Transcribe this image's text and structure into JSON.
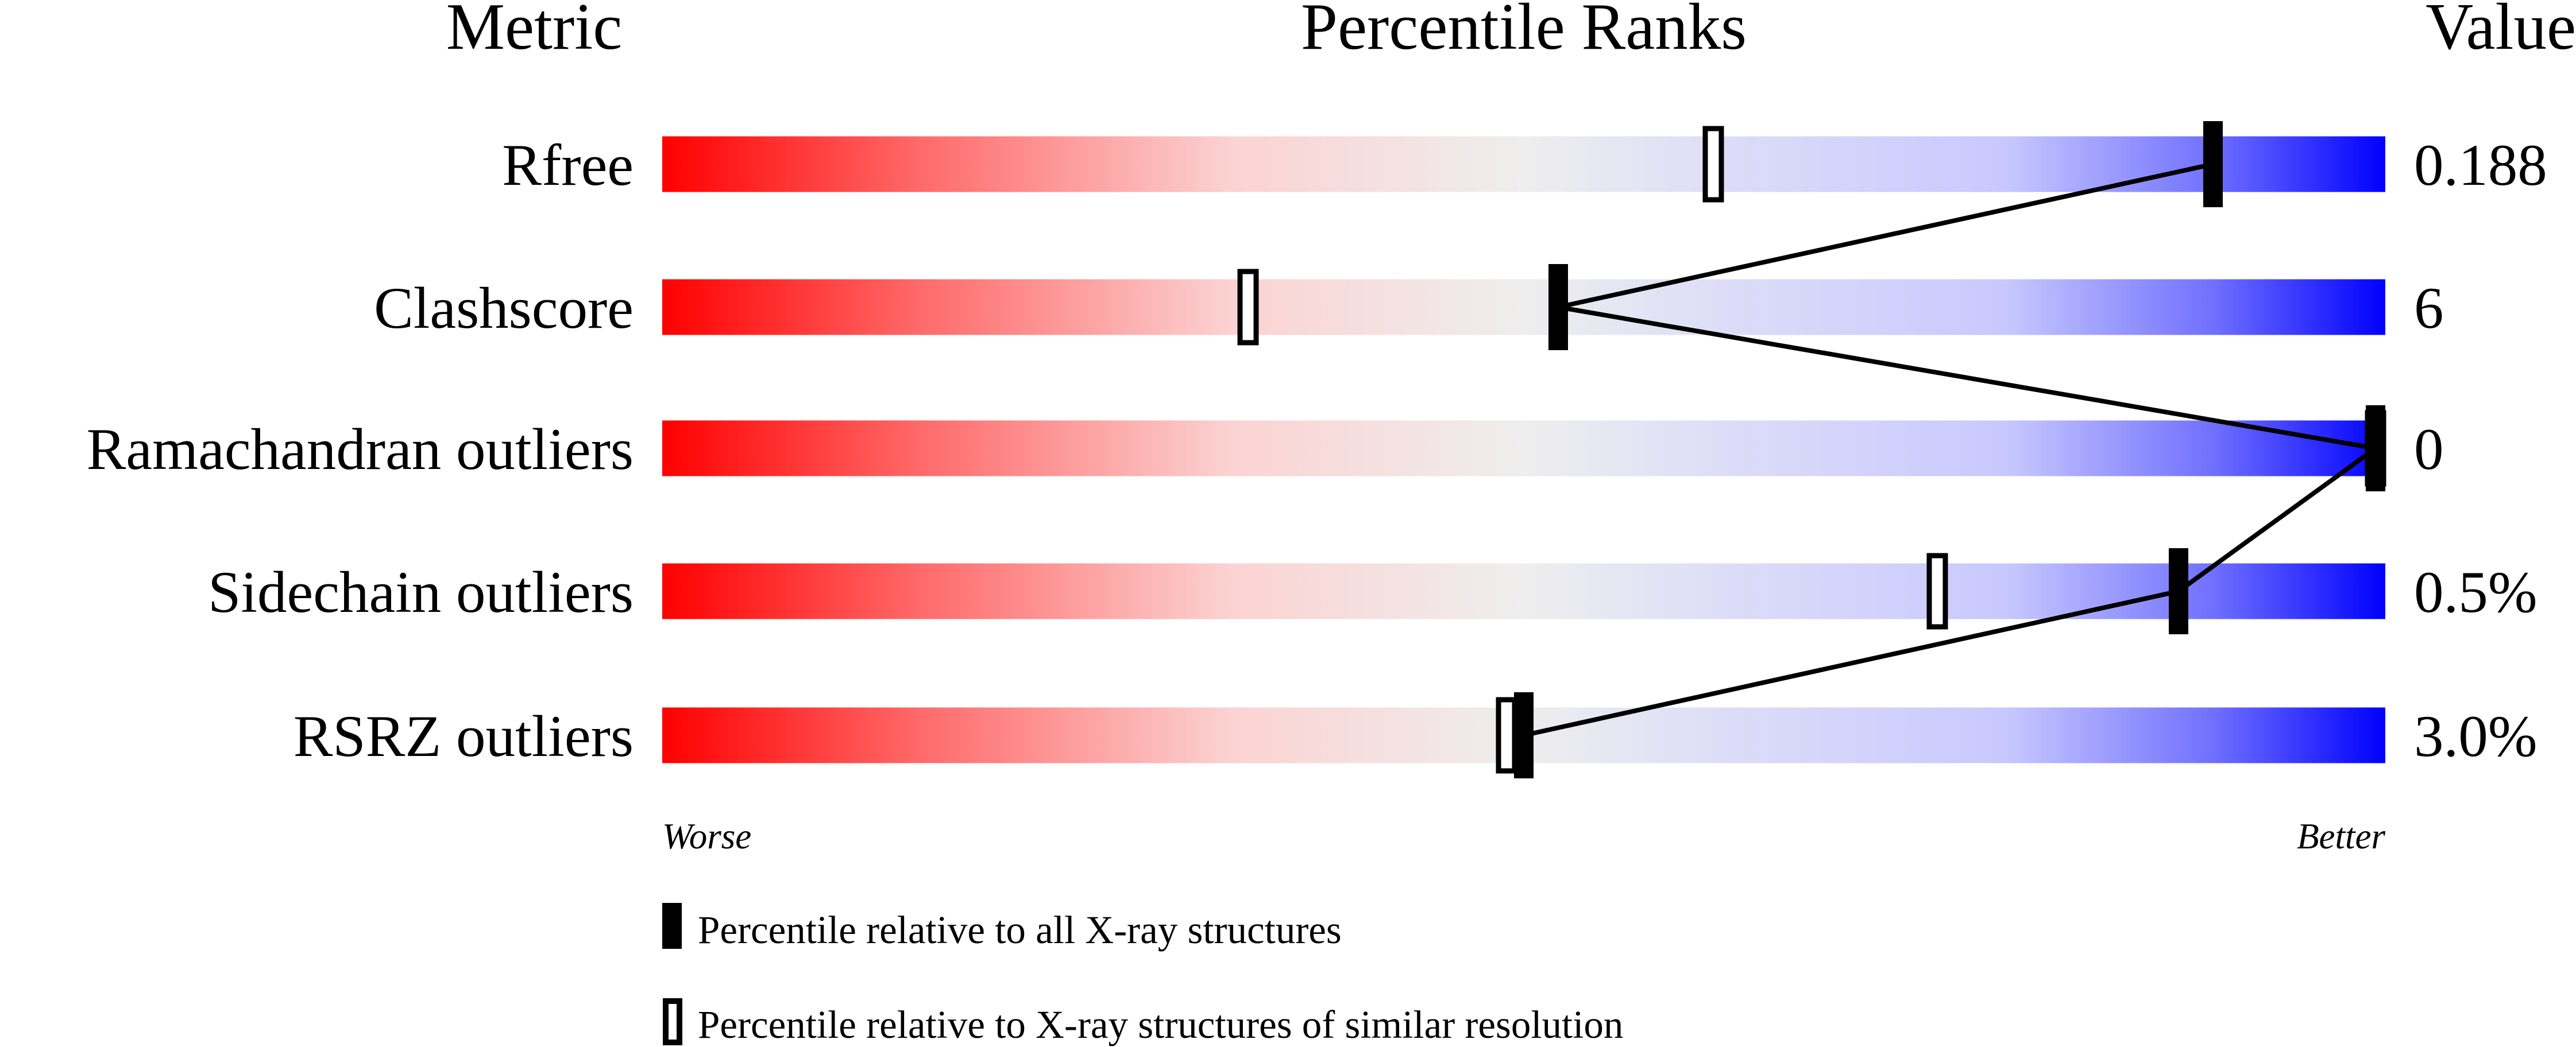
{
  "chart_data": {
    "type": "percentile-slider",
    "headers": {
      "metric": "Metric",
      "percentile": "Percentile Ranks",
      "value": "Value"
    },
    "xlim": [
      0,
      100
    ],
    "axis_labels": {
      "left": "Worse",
      "right": "Better"
    },
    "colors": {
      "worse": "#ff0000",
      "middle": "#eeeeee",
      "better": "#0000ff"
    },
    "metrics": [
      {
        "name": "Rfree",
        "value": "0.188",
        "percentile_all": 90,
        "percentile_similar": 61
      },
      {
        "name": "Clashscore",
        "value": "6",
        "percentile_all": 52,
        "percentile_similar": 34
      },
      {
        "name": "Ramachandran outliers",
        "value": "0",
        "percentile_all": 100,
        "percentile_similar": 100
      },
      {
        "name": "Sidechain outliers",
        "value": "0.5%",
        "percentile_all": 88,
        "percentile_similar": 74
      },
      {
        "name": "RSRZ outliers",
        "value": "3.0%",
        "percentile_all": 50,
        "percentile_similar": 49
      }
    ],
    "legend": {
      "filled": "Percentile relative to all X-ray structures",
      "open": "Percentile relative to X-ray structures of similar resolution"
    }
  }
}
